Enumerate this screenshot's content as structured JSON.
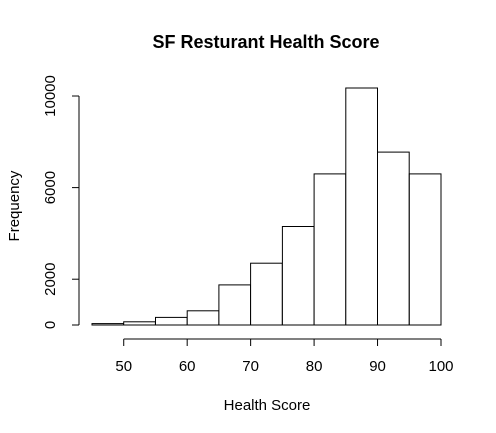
{
  "chart_data": {
    "type": "bar",
    "title": "SF Resturant Health Score",
    "xlabel": "Health Score",
    "ylabel": "Frequency",
    "bin_edges": [
      45,
      50,
      55,
      60,
      65,
      70,
      75,
      80,
      85,
      90,
      95,
      100
    ],
    "values": [
      60,
      140,
      330,
      620,
      1750,
      2700,
      4300,
      6600,
      10350,
      7550,
      6600
    ],
    "x_ticks": [
      50,
      60,
      70,
      80,
      90,
      100
    ],
    "y_ticks": [
      0,
      2000,
      6000,
      10000
    ],
    "xlim": [
      45,
      100
    ],
    "ylim": [
      0,
      10350
    ],
    "grid": false,
    "bar_fill": "#ffffff",
    "bar_stroke": "#000000"
  }
}
